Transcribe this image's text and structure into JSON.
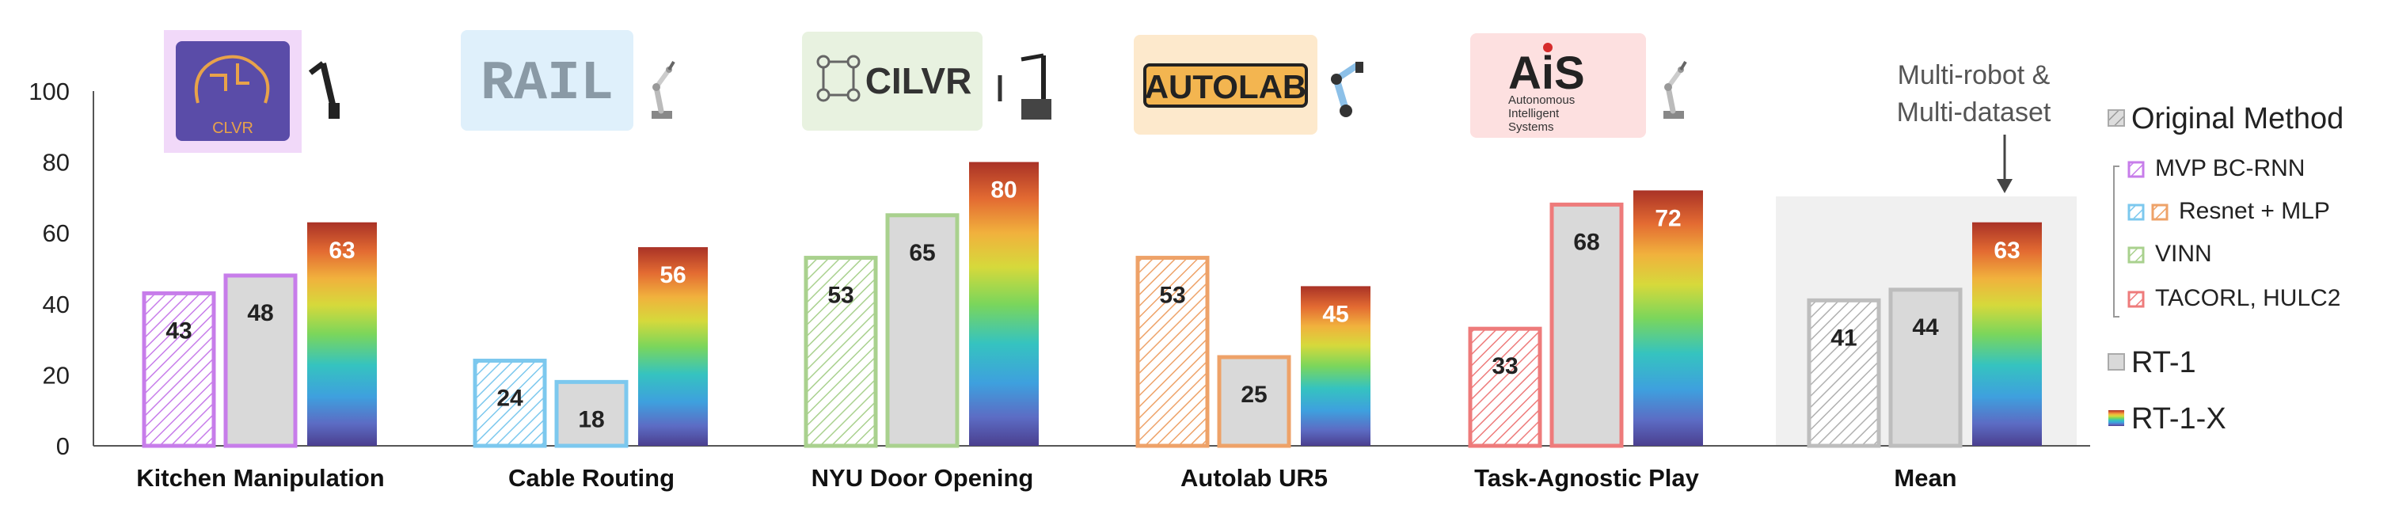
{
  "chart_data": {
    "type": "bar",
    "ylim": [
      0,
      100
    ],
    "yticks": [
      0,
      20,
      40,
      60,
      80,
      100
    ],
    "grid": false,
    "legend_position": "right",
    "categories": [
      "Kitchen Manipulation",
      "Cable Routing",
      "NYU Door Opening",
      "Autolab UR5",
      "Task-Agnostic Play",
      "Mean"
    ],
    "series": [
      {
        "name": "Original Method",
        "values": [
          43,
          24,
          53,
          53,
          33,
          41
        ]
      },
      {
        "name": "RT-1",
        "values": [
          48,
          18,
          65,
          25,
          68,
          44
        ]
      },
      {
        "name": "RT-1-X",
        "values": [
          63,
          56,
          80,
          45,
          72,
          63
        ]
      }
    ],
    "original_method_variants": [
      "MVP BC-RNN",
      "Resnet + MLP",
      "VINN",
      "Resnet + MLP",
      "TACORL, HULC2"
    ],
    "annotation": "Multi-robot & Multi-dataset",
    "annotation_lines": [
      "Multi-robot &",
      "Multi-dataset"
    ],
    "logos": [
      "CLVR",
      "RAIL",
      "CILVR",
      "AUTOLAB",
      "AiS"
    ],
    "logo_subtext": [
      "Autonomous",
      "Intelligent",
      "Systems"
    ]
  },
  "legend": {
    "original": "Original Method",
    "variants": [
      "MVP BC-RNN",
      "Resnet + MLP",
      "VINN",
      "TACORL, HULC2"
    ],
    "rt1": "RT-1",
    "rt1x": "RT-1-X"
  },
  "colors": {
    "mvp": "#c77dea",
    "resnet_blue": "#7cc8ee",
    "resnet_orange": "#eea268",
    "vinn": "#a9d18e",
    "tacorl": "#ee7b7b",
    "mean_gray": "#bdbdbd",
    "rt1_fill": "#d9d9d9"
  }
}
